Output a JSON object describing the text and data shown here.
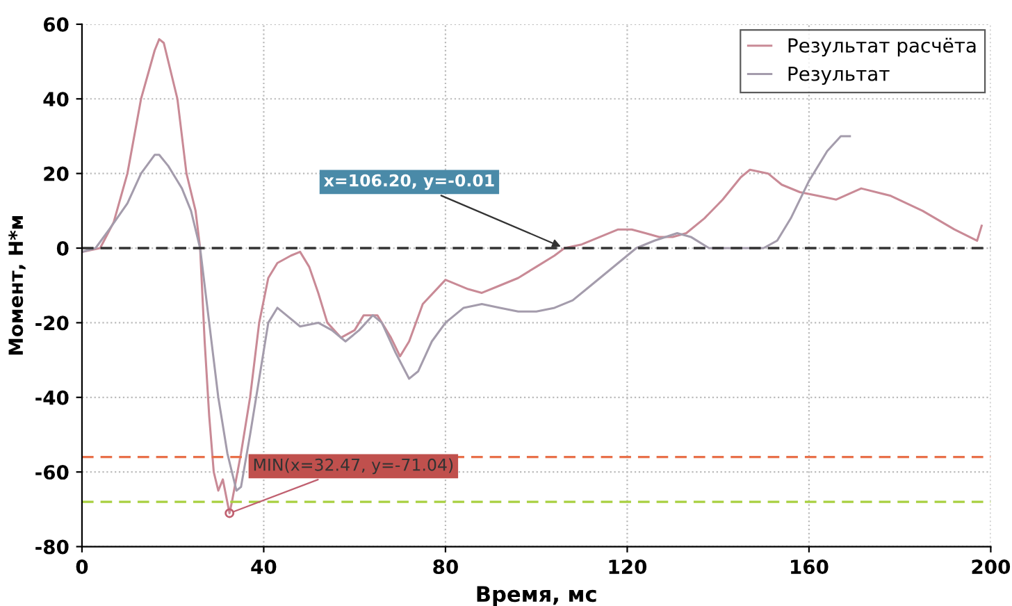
{
  "chart_data": {
    "type": "line",
    "xlabel": "Время, мс",
    "ylabel": "Момент, Н*м",
    "xlim": [
      0,
      200
    ],
    "ylim": [
      -80,
      60
    ],
    "xticks": [
      0,
      40,
      80,
      120,
      160,
      200
    ],
    "yticks": [
      -80,
      -60,
      -40,
      -20,
      0,
      20,
      40,
      60
    ],
    "grid": true,
    "legend": "top right",
    "line_style": "solid",
    "marker": "none",
    "series": [
      {
        "name": "Результат расчёта",
        "color": "#c98a96",
        "x": [
          0,
          4,
          7,
          10,
          13,
          16,
          17,
          18,
          21,
          23,
          25,
          26,
          27,
          28,
          29,
          30,
          31,
          32.47,
          33,
          35,
          37,
          39,
          41,
          43,
          46,
          48,
          50,
          52,
          54,
          57,
          60,
          62,
          65,
          68,
          70,
          72,
          75,
          80,
          85,
          88,
          92,
          96,
          100,
          104,
          106.2,
          110,
          114,
          118,
          121,
          124,
          127,
          130,
          133,
          137,
          141,
          145,
          147,
          151,
          154,
          158,
          162,
          166,
          171.5,
          178,
          185,
          192,
          197,
          198
        ],
        "values": [
          -1,
          0,
          7,
          20,
          40,
          53,
          56,
          55,
          40,
          20,
          10,
          0,
          -25,
          -45,
          -60,
          -65,
          -62,
          -71.04,
          -68,
          -55,
          -40,
          -20,
          -8,
          -4,
          -2,
          -1,
          -5,
          -12,
          -20,
          -24,
          -22,
          -18,
          -18,
          -24,
          -29,
          -25,
          -15,
          -8.5,
          -11,
          -12,
          -10,
          -8,
          -5,
          -2,
          0,
          1,
          3,
          5,
          5,
          4,
          3,
          3,
          4,
          8,
          13,
          19,
          21,
          20,
          17,
          15,
          14,
          13,
          16,
          14,
          10,
          5,
          2,
          6
        ]
      },
      {
        "name": "Результат",
        "color": "#a49cac",
        "x": [
          0,
          3,
          6,
          10,
          13,
          16,
          17,
          19,
          22,
          24,
          26,
          28,
          30,
          32,
          34,
          35,
          37,
          39,
          41,
          43,
          45,
          48,
          52,
          55,
          58,
          61,
          64,
          66,
          69,
          72,
          74,
          77,
          80,
          84,
          88,
          92,
          96,
          100,
          104,
          108,
          112,
          116,
          122,
          126,
          131,
          134,
          138,
          144,
          150,
          153,
          156,
          160,
          164,
          167,
          169
        ],
        "values": [
          -1,
          0,
          5,
          12,
          20,
          25,
          25,
          22,
          16,
          10,
          0,
          -20,
          -40,
          -55,
          -65,
          -64,
          -50,
          -35,
          -20,
          -16,
          -18,
          -21,
          -20,
          -22,
          -25,
          -22,
          -18,
          -20,
          -28,
          -35,
          -33,
          -25,
          -20,
          -16,
          -15,
          -16,
          -17,
          -17,
          -16,
          -14,
          -10,
          -6,
          0,
          2,
          4,
          3,
          0,
          0,
          0,
          2,
          8,
          18,
          26,
          30,
          30
        ]
      }
    ],
    "ref_lines": [
      {
        "axis": "y",
        "value": 0,
        "color": "#333333",
        "line_style": "dashed"
      },
      {
        "axis": "y",
        "value": -56,
        "color": "#e8704a",
        "line_style": "dashed"
      },
      {
        "axis": "y",
        "value": -68,
        "color": "#a8d040",
        "line_style": "dashed"
      }
    ],
    "annotations": [
      {
        "text": "x=106.20, y=-0.01",
        "x": 106.2,
        "y": -0.01
      },
      {
        "text": "MIN(x=32.47, y=-71.04)",
        "x": 32.47,
        "y": -71.04
      }
    ]
  }
}
